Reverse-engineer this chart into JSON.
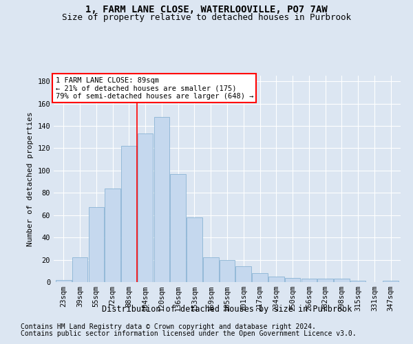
{
  "title": "1, FARM LANE CLOSE, WATERLOOVILLE, PO7 7AW",
  "subtitle": "Size of property relative to detached houses in Purbrook",
  "xlabel": "Distribution of detached houses by size in Purbrook",
  "ylabel": "Number of detached properties",
  "categories": [
    "23sqm",
    "39sqm",
    "55sqm",
    "72sqm",
    "88sqm",
    "104sqm",
    "120sqm",
    "136sqm",
    "153sqm",
    "169sqm",
    "185sqm",
    "201sqm",
    "217sqm",
    "234sqm",
    "250sqm",
    "266sqm",
    "282sqm",
    "298sqm",
    "315sqm",
    "331sqm",
    "347sqm"
  ],
  "values": [
    2,
    22,
    67,
    84,
    122,
    133,
    148,
    97,
    58,
    22,
    20,
    14,
    8,
    5,
    4,
    3,
    3,
    3,
    1,
    0,
    1
  ],
  "bar_color": "#c5d8ee",
  "bar_edge_color": "#8ab4d4",
  "annotation_text": "1 FARM LANE CLOSE: 89sqm\n← 21% of detached houses are smaller (175)\n79% of semi-detached houses are larger (648) →",
  "annotation_box_color": "white",
  "annotation_box_edge_color": "red",
  "vline_color": "red",
  "vline_x_index": 4,
  "ylim": [
    0,
    185
  ],
  "yticks": [
    0,
    20,
    40,
    60,
    80,
    100,
    120,
    140,
    160,
    180
  ],
  "footer_line1": "Contains HM Land Registry data © Crown copyright and database right 2024.",
  "footer_line2": "Contains public sector information licensed under the Open Government Licence v3.0.",
  "bg_color": "#dce6f2",
  "plot_bg_color": "#dce6f2",
  "grid_color": "white",
  "title_fontsize": 10,
  "subtitle_fontsize": 9,
  "xlabel_fontsize": 8.5,
  "ylabel_fontsize": 8,
  "tick_fontsize": 7.5,
  "footer_fontsize": 7,
  "annotation_fontsize": 7.5
}
